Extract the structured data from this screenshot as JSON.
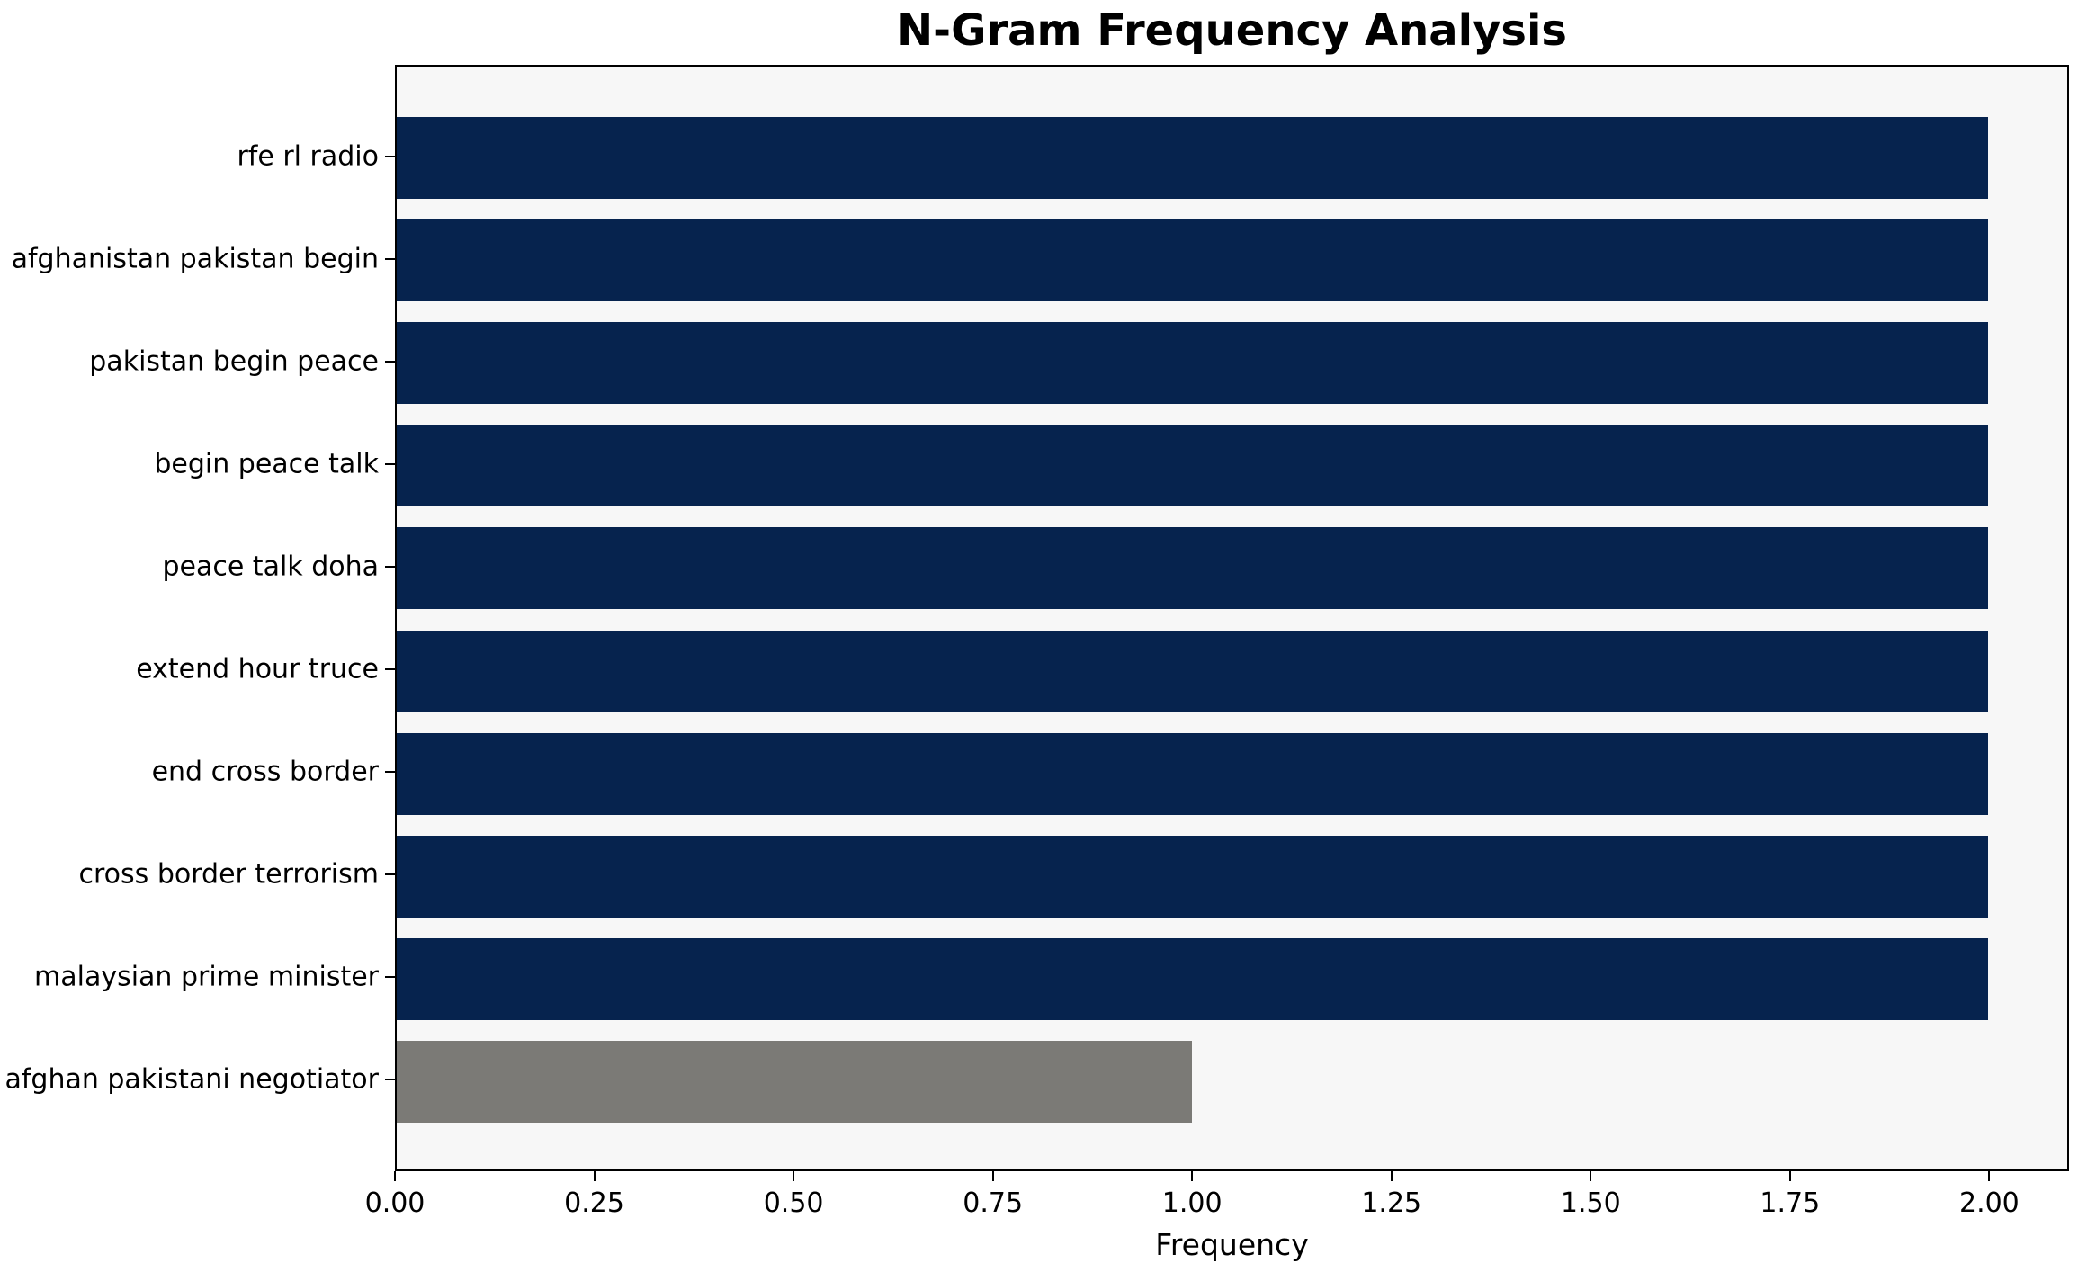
{
  "chart_data": {
    "type": "bar",
    "orientation": "horizontal",
    "title": "N-Gram Frequency Analysis",
    "xlabel": "Frequency",
    "ylabel": "",
    "categories": [
      "rfe rl radio",
      "afghanistan pakistan begin",
      "pakistan begin peace",
      "begin peace talk",
      "peace talk doha",
      "extend hour truce",
      "end cross border",
      "cross border terrorism",
      "malaysian prime minister",
      "afghan pakistani negotiator"
    ],
    "values": [
      2,
      2,
      2,
      2,
      2,
      2,
      2,
      2,
      2,
      1
    ],
    "bar_colors": [
      "#06234e",
      "#06234e",
      "#06234e",
      "#06234e",
      "#06234e",
      "#06234e",
      "#06234e",
      "#06234e",
      "#06234e",
      "#7b7a76"
    ],
    "xlim": [
      0,
      2.1
    ],
    "xticks": [
      0,
      0.25,
      0.5,
      0.75,
      1.0,
      1.25,
      1.5,
      1.75,
      2.0
    ],
    "xtick_labels": [
      "0.00",
      "0.25",
      "0.50",
      "0.75",
      "1.00",
      "1.25",
      "1.50",
      "1.75",
      "2.00"
    ],
    "grid": false,
    "legend": null,
    "colors": {
      "plot_background": "#f7f7f7",
      "figure_background": "#ffffff",
      "axis": "#000000"
    }
  }
}
